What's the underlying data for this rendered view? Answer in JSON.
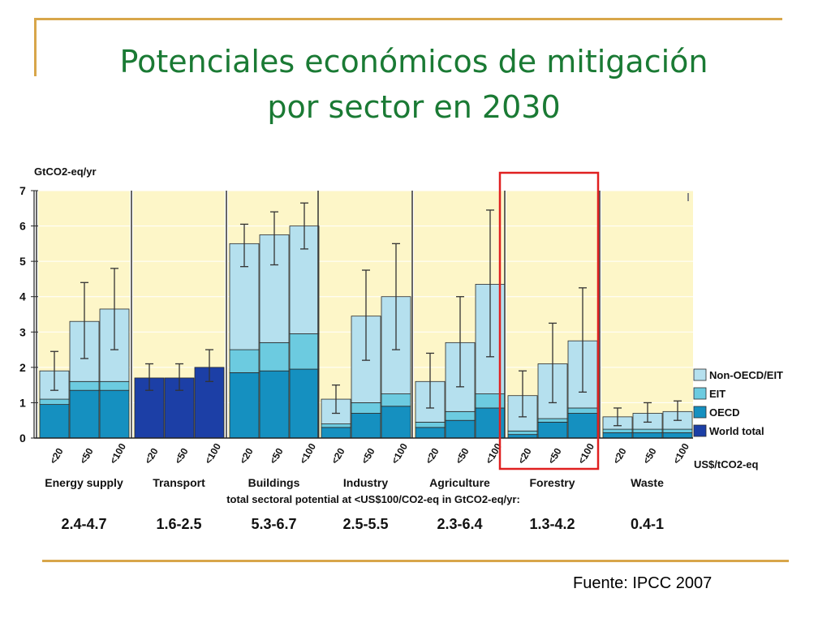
{
  "slide": {
    "title_line1": "Potenciales económicos de mitigación",
    "title_line2": "por sector en 2030",
    "source": "Fuente: IPCC 2007"
  },
  "colors": {
    "background_panel": "#fdf6c8",
    "non_oecd_eit": "#b5e0ee",
    "eit": "#6ccbe0",
    "oecd": "#1590c0",
    "world_total": "#1c3fa6",
    "highlight": "#e02020",
    "title": "#1a7a34",
    "frame": "#d8a64a"
  },
  "chart_data": {
    "type": "bar",
    "stacked": true,
    "ylabel": "GtCO2-eq/yr",
    "ylim": [
      0,
      7
    ],
    "yticks": [
      0,
      1,
      2,
      3,
      4,
      5,
      6,
      7
    ],
    "price_labels": [
      "<20",
      "<50",
      "<100"
    ],
    "price_unit": "US$/tCO2-eq",
    "total_caption": "total sectoral potential at <US$100/CO2-eq in GtCO2-eq/yr:",
    "highlighted_sector": "Forestry",
    "legend": [
      {
        "name": "Non-OECD/EIT",
        "color_key": "non_oecd_eit"
      },
      {
        "name": "EIT",
        "color_key": "eit"
      },
      {
        "name": "OECD",
        "color_key": "oecd"
      },
      {
        "name": "World total",
        "color_key": "world_total"
      }
    ],
    "sectors": [
      {
        "name": "Energy supply",
        "total": "2.4-4.7",
        "bars": [
          {
            "price": "<20",
            "oecd": 0.95,
            "eit": 0.15,
            "non_oecd": 0.8,
            "err": [
              1.35,
              2.45
            ]
          },
          {
            "price": "<50",
            "oecd": 1.35,
            "eit": 0.25,
            "non_oecd": 1.7,
            "err": [
              2.25,
              4.4
            ]
          },
          {
            "price": "<100",
            "oecd": 1.35,
            "eit": 0.25,
            "non_oecd": 2.05,
            "err": [
              2.5,
              4.8
            ]
          }
        ]
      },
      {
        "name": "Transport",
        "total": "1.6-2.5",
        "bars": [
          {
            "price": "<20",
            "world": 1.7,
            "err": [
              1.35,
              2.1
            ]
          },
          {
            "price": "<50",
            "world": 1.7,
            "err": [
              1.35,
              2.1
            ]
          },
          {
            "price": "<100",
            "world": 2.0,
            "err": [
              1.6,
              2.5
            ]
          }
        ]
      },
      {
        "name": "Buildings",
        "total": "5.3-6.7",
        "bars": [
          {
            "price": "<20",
            "oecd": 1.85,
            "eit": 0.65,
            "non_oecd": 3.0,
            "err": [
              4.85,
              6.05
            ]
          },
          {
            "price": "<50",
            "oecd": 1.9,
            "eit": 0.8,
            "non_oecd": 3.05,
            "err": [
              4.9,
              6.4
            ]
          },
          {
            "price": "<100",
            "oecd": 1.95,
            "eit": 1.0,
            "non_oecd": 3.05,
            "err": [
              5.35,
              6.65
            ]
          }
        ]
      },
      {
        "name": "Industry",
        "total": "2.5-5.5",
        "bars": [
          {
            "price": "<20",
            "oecd": 0.3,
            "eit": 0.1,
            "non_oecd": 0.7,
            "err": [
              0.7,
              1.5
            ]
          },
          {
            "price": "<50",
            "oecd": 0.7,
            "eit": 0.3,
            "non_oecd": 2.45,
            "err": [
              2.2,
              4.75
            ]
          },
          {
            "price": "<100",
            "oecd": 0.9,
            "eit": 0.35,
            "non_oecd": 2.75,
            "err": [
              2.5,
              5.5
            ]
          }
        ]
      },
      {
        "name": "Agriculture",
        "total": "2.3-6.4",
        "bars": [
          {
            "price": "<20",
            "oecd": 0.3,
            "eit": 0.15,
            "non_oecd": 1.15,
            "err": [
              0.85,
              2.4
            ]
          },
          {
            "price": "<50",
            "oecd": 0.5,
            "eit": 0.25,
            "non_oecd": 1.95,
            "err": [
              1.45,
              4.0
            ]
          },
          {
            "price": "<100",
            "oecd": 0.85,
            "eit": 0.4,
            "non_oecd": 3.1,
            "err": [
              2.3,
              6.45
            ]
          }
        ]
      },
      {
        "name": "Forestry",
        "total": "1.3-4.2",
        "bars": [
          {
            "price": "<20",
            "oecd": 0.1,
            "eit": 0.1,
            "non_oecd": 1.0,
            "err": [
              0.6,
              1.9
            ]
          },
          {
            "price": "<50",
            "oecd": 0.45,
            "eit": 0.1,
            "non_oecd": 1.55,
            "err": [
              1.0,
              3.25
            ]
          },
          {
            "price": "<100",
            "oecd": 0.7,
            "eit": 0.15,
            "non_oecd": 1.9,
            "err": [
              1.3,
              4.25
            ]
          }
        ]
      },
      {
        "name": "Waste",
        "total": "0.4-1",
        "bars": [
          {
            "price": "<20",
            "oecd": 0.15,
            "eit": 0.1,
            "non_oecd": 0.35,
            "err": [
              0.35,
              0.85
            ]
          },
          {
            "price": "<50",
            "oecd": 0.15,
            "eit": 0.1,
            "non_oecd": 0.45,
            "err": [
              0.45,
              1.0
            ]
          },
          {
            "price": "<100",
            "oecd": 0.15,
            "eit": 0.1,
            "non_oecd": 0.5,
            "err": [
              0.5,
              1.05
            ]
          }
        ]
      }
    ]
  }
}
